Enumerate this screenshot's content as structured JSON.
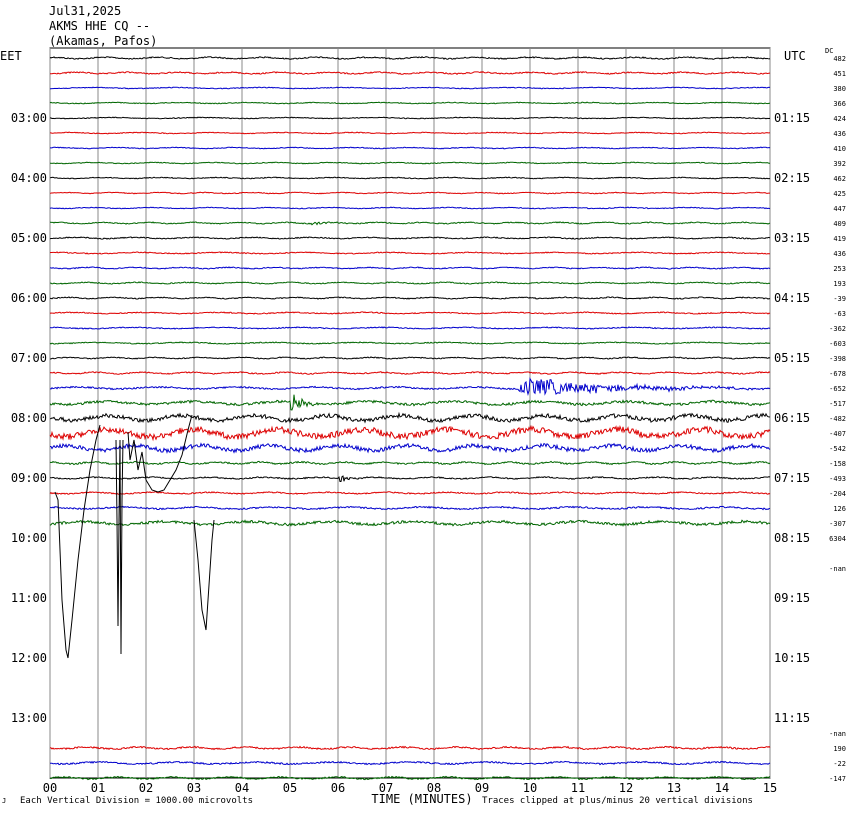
{
  "header": {
    "date": "Jul31,2025",
    "station": "AKMS HHE CQ --",
    "location": "(Akamas, Pafos)"
  },
  "left_zone": "EET",
  "right_zone": "UTC",
  "dc_label": "DC",
  "footer": {
    "scale_note": "Each Vertical Division = 1000.00 microvolts",
    "xlabel": "TIME (MINUTES)",
    "clip_note": "Traces clipped at plus/minus 20 vertical divisions",
    "corner_mark": "J"
  },
  "colors": {
    "black": "#000000",
    "red": "#dd0000",
    "blue": "#0000cc",
    "green": "#006600",
    "grid": "#888888"
  },
  "chart_data": {
    "type": "line",
    "title": "",
    "xlabel": "TIME (MINUTES)",
    "xlim": [
      0,
      15
    ],
    "x_ticks": [
      "00",
      "01",
      "02",
      "03",
      "04",
      "05",
      "06",
      "07",
      "08",
      "09",
      "10",
      "11",
      "12",
      "13",
      "14",
      "15"
    ],
    "left_time_labels": [
      "03:00",
      "04:00",
      "05:00",
      "06:00",
      "07:00",
      "08:00",
      "09:00",
      "10:00",
      "11:00",
      "12:00",
      "13:00"
    ],
    "right_time_labels": [
      "01:15",
      "02:15",
      "03:15",
      "04:15",
      "05:15",
      "06:15",
      "07:15",
      "08:15",
      "09:15",
      "10:15",
      "11:15"
    ],
    "traces": [
      {
        "color": "black",
        "dc": "482",
        "amp": 1.2
      },
      {
        "color": "red",
        "dc": "451",
        "amp": 1.2
      },
      {
        "color": "blue",
        "dc": "380",
        "amp": 0.8
      },
      {
        "color": "green",
        "dc": "366",
        "amp": 0.8
      },
      {
        "color": "black",
        "dc": "424",
        "amp": 0.8
      },
      {
        "color": "red",
        "dc": "436",
        "amp": 0.8
      },
      {
        "color": "blue",
        "dc": "410",
        "amp": 0.8
      },
      {
        "color": "green",
        "dc": "392",
        "amp": 0.8
      },
      {
        "color": "black",
        "dc": "462",
        "amp": 0.8
      },
      {
        "color": "red",
        "dc": "425",
        "amp": 0.8
      },
      {
        "color": "blue",
        "dc": "447",
        "amp": 0.8
      },
      {
        "color": "green",
        "dc": "409",
        "amp": 1.0,
        "event": [
          5.4,
          6.1,
          2.5
        ]
      },
      {
        "color": "black",
        "dc": "419",
        "amp": 1.0
      },
      {
        "color": "red",
        "dc": "436",
        "amp": 1.0
      },
      {
        "color": "blue",
        "dc": "253",
        "amp": 1.0
      },
      {
        "color": "green",
        "dc": "193",
        "amp": 1.0
      },
      {
        "color": "black",
        "dc": "-39",
        "amp": 1.0
      },
      {
        "color": "red",
        "dc": "-63",
        "amp": 1.0
      },
      {
        "color": "blue",
        "dc": "-362",
        "amp": 1.0
      },
      {
        "color": "green",
        "dc": "-603",
        "amp": 1.0
      },
      {
        "color": "black",
        "dc": "-398",
        "amp": 1.0
      },
      {
        "color": "red",
        "dc": "-678",
        "amp": 1.2
      },
      {
        "color": "blue",
        "dc": "-652",
        "amp": 1.5,
        "event": [
          9.7,
          15,
          11
        ]
      },
      {
        "color": "green",
        "dc": "-517",
        "amp": 2.5,
        "event": [
          5.0,
          5.6,
          12
        ]
      },
      {
        "color": "black",
        "dc": "-482",
        "amp": 4
      },
      {
        "color": "red",
        "dc": "-407",
        "amp": 6
      },
      {
        "color": "blue",
        "dc": "-542",
        "amp": 4
      },
      {
        "color": "green",
        "dc": "-158",
        "amp": 1.5
      },
      {
        "color": "black",
        "dc": "-493",
        "amp": 1.2,
        "event": [
          6.0,
          6.8,
          4
        ]
      },
      {
        "color": "red",
        "dc": "-204",
        "amp": 1.2
      },
      {
        "color": "blue",
        "dc": "126",
        "amp": 1.5
      },
      {
        "color": "green",
        "dc": "-307",
        "amp": 2.5
      },
      {
        "color": "blue",
        "dc": "6304",
        "amp": 0
      },
      {
        "color": "black",
        "dc": "-nan",
        "amp": 0
      },
      {
        "color": "black",
        "dc": "-nan",
        "amp": 0
      },
      {
        "color": "red",
        "dc": "190",
        "amp": 1.5
      },
      {
        "color": "blue",
        "dc": "-22",
        "amp": 1.5
      },
      {
        "color": "green",
        "dc": "-147",
        "amp": 1.5
      }
    ]
  }
}
